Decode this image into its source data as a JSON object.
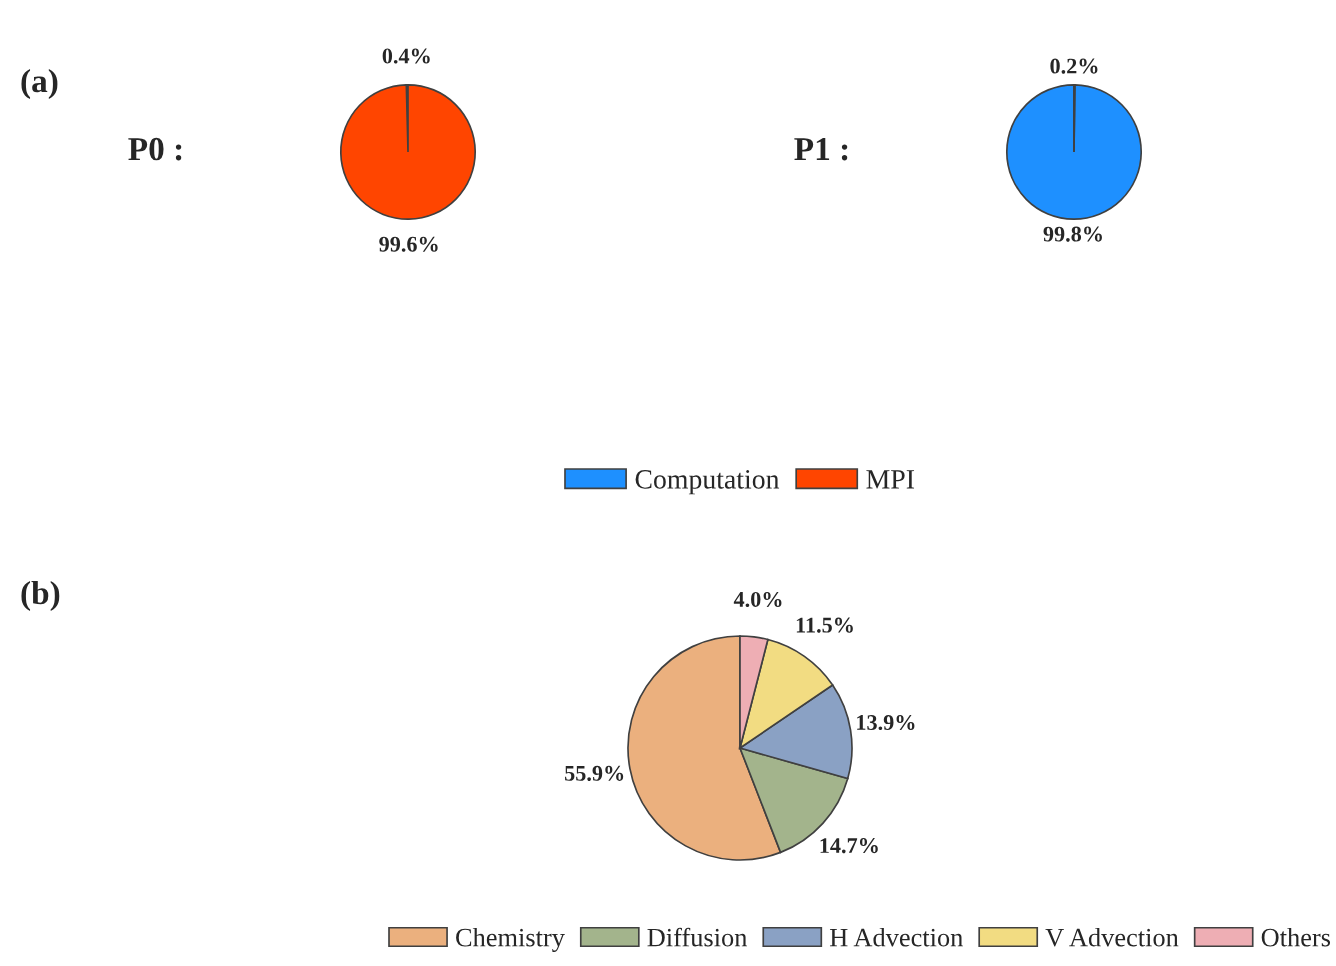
{
  "chart_data": [
    {
      "type": "pie",
      "title": "P0 :",
      "annotations": [
        "(a)"
      ],
      "categories": [
        "Computation",
        "MPI"
      ],
      "values": [
        0.4,
        99.6
      ],
      "colors": [
        "#1e90ff",
        "#ff4500"
      ],
      "value_labels": [
        "0.4%",
        "99.6%"
      ],
      "legend": "bottom"
    },
    {
      "type": "pie",
      "title": "P1 :",
      "values": [
        99.8,
        0.2
      ],
      "colors": [
        "#1e90ff",
        "#ff4500"
      ],
      "value_labels": [
        "99.8%",
        "0.2%"
      ]
    },
    {
      "type": "pie",
      "annotations": [
        "(b)"
      ],
      "categories": [
        "Chemistry",
        "Diffusion",
        "H Advection",
        "V Advection",
        "Others"
      ],
      "values": [
        55.9,
        14.7,
        13.9,
        11.5,
        4.0
      ],
      "colors": [
        "#ebb07e",
        "#a3b48c",
        "#8aa1c4",
        "#f2dc82",
        "#eeaeb4"
      ],
      "value_labels": [
        "55.9%",
        "14.7%",
        "13.9%",
        "11.5%",
        "4.0%"
      ],
      "legend": "bottom"
    }
  ]
}
